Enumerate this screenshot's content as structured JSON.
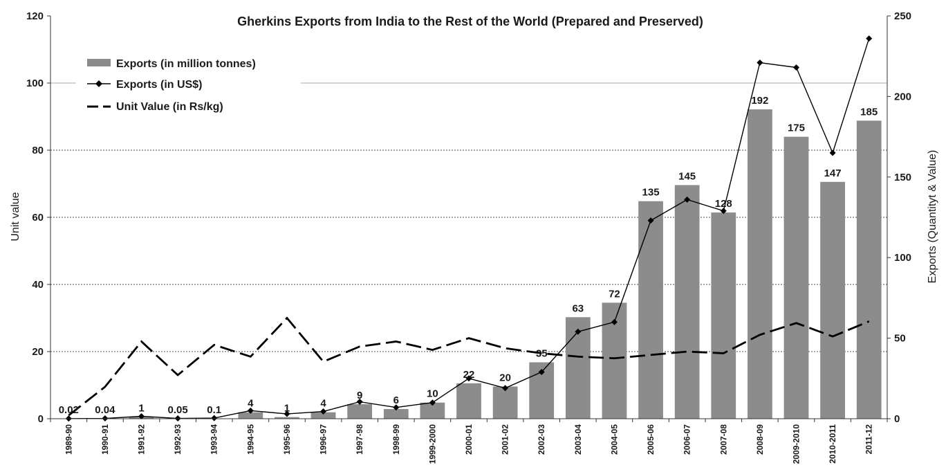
{
  "chart_data": {
    "type": "bar",
    "title": "Gherkins Exports from India to the Rest of the World (Prepared and Preserved)",
    "categories": [
      "1989-90",
      "1990-91",
      "1991-92",
      "1992-93",
      "1993-94",
      "1994-95",
      "1995-96",
      "1996-97",
      "1997-98",
      "1998-99",
      "1999-2000",
      "2000-01",
      "2001-02",
      "2002-03",
      "2003-04",
      "2004-05",
      "2005-06",
      "2006-07",
      "2007-08",
      "2008-09",
      "2009-2010",
      "2010-2011",
      "2011-12"
    ],
    "y_left": {
      "label": "Unit value",
      "range": [
        0,
        120
      ],
      "ticks": [
        "0",
        "20",
        "40",
        "60",
        "80",
        "100",
        "120"
      ]
    },
    "y_right": {
      "label": "Exports (Quantityt & Value)",
      "range": [
        0,
        250
      ],
      "ticks": [
        "0",
        "50",
        "100",
        "150",
        "200",
        "250"
      ]
    },
    "legend_position": "top-left",
    "grid": true,
    "series": [
      {
        "name": "Exports (in million tonnes)",
        "kind": "bar",
        "axis": "right",
        "color": "#8c8c8c",
        "values": [
          0.02,
          0.04,
          1,
          0.05,
          0.1,
          4,
          1,
          4,
          9,
          6,
          10,
          22,
          20,
          35,
          63,
          72,
          135,
          145,
          128,
          192,
          175,
          147,
          185
        ],
        "labels": [
          "0.02",
          "0.04",
          "1",
          "0.05",
          "0.1",
          "4",
          "1",
          "4",
          "9",
          "6",
          "10",
          "22",
          "20",
          "35",
          "63",
          "72",
          "135",
          "145",
          "128",
          "192",
          "175",
          "147",
          "185"
        ]
      },
      {
        "name": "Exports (in US$)",
        "kind": "line-marker",
        "axis": "right",
        "color": "#000000",
        "values": [
          0.1,
          0.2,
          1.5,
          0.2,
          0.4,
          5,
          3,
          4.5,
          10.5,
          7,
          10,
          25,
          19,
          29,
          54,
          60,
          123,
          136,
          129,
          221,
          218,
          165,
          236
        ]
      },
      {
        "name": "Unit Value (in Rs/kg)",
        "kind": "dashed-line",
        "axis": "left",
        "color": "#000000",
        "values": [
          1,
          9.5,
          23,
          13,
          22,
          18.5,
          30,
          17,
          21.5,
          23,
          20.5,
          24,
          21,
          19.5,
          18.5,
          18,
          19,
          20,
          19.5,
          25,
          28.5,
          24.5,
          29
        ]
      }
    ]
  }
}
